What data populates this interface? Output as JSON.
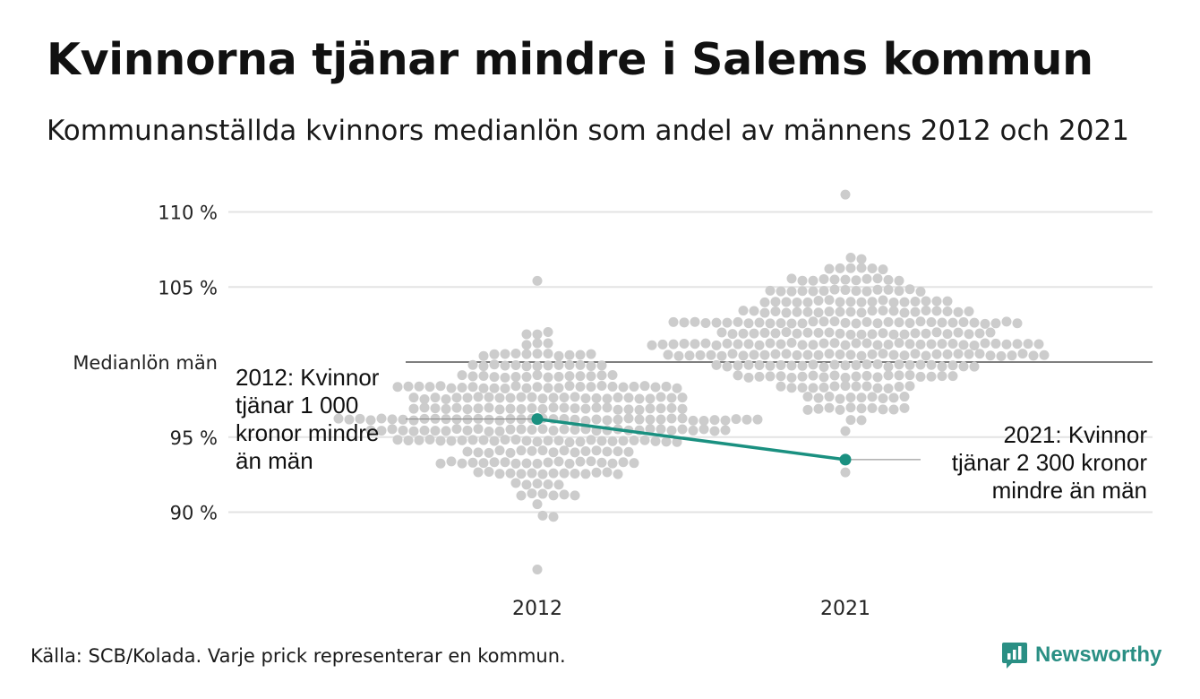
{
  "title": "Kvinnorna tjänar mindre i Salems kommun",
  "subtitle": "Kommunanställda kvinnors medianlön som andel av männens 2012 och 2021",
  "source": "Källa: SCB/Kolada. Varje prick representerar en kommun.",
  "brand": {
    "name": "Newsworthy",
    "icon": "newsworthy-logo-icon",
    "color": "#2a8f84"
  },
  "chart_data": {
    "type": "scatter",
    "subtype": "beeswarm",
    "categories": [
      "2012",
      "2021"
    ],
    "y_ticks": [
      {
        "value": 110,
        "label": "110 %"
      },
      {
        "value": 105,
        "label": "105 %"
      },
      {
        "value": 95,
        "label": "95 %"
      },
      {
        "value": 90,
        "label": "90 %"
      }
    ],
    "reference_line": {
      "value": 100,
      "label": "Medianlön män"
    },
    "ylim": [
      86,
      112
    ],
    "grid": true,
    "colors": {
      "dots": "#cccccc",
      "highlight": "#1a9080",
      "grid": "#e3e3e3",
      "reference": "#333333"
    },
    "highlight": {
      "name": "Salem",
      "values": [
        96.2,
        93.5
      ],
      "annotations": [
        {
          "category": "2012",
          "lines": [
            "2012: Kvinnor",
            "tjänar 1 000",
            "kronor mindre",
            "än män"
          ]
        },
        {
          "category": "2021",
          "lines": [
            "2021: Kvinnor",
            "tjänar 2 300 kronor",
            "mindre än män"
          ]
        }
      ]
    },
    "series": [
      {
        "name": "2012",
        "summary": {
          "count": 290,
          "min": 86.5,
          "max": 105.2,
          "center": 96.5
        }
      },
      {
        "name": "2021",
        "summary": {
          "count": 290,
          "min": 92.5,
          "max": 111.3,
          "center": 101.5
        }
      }
    ]
  }
}
